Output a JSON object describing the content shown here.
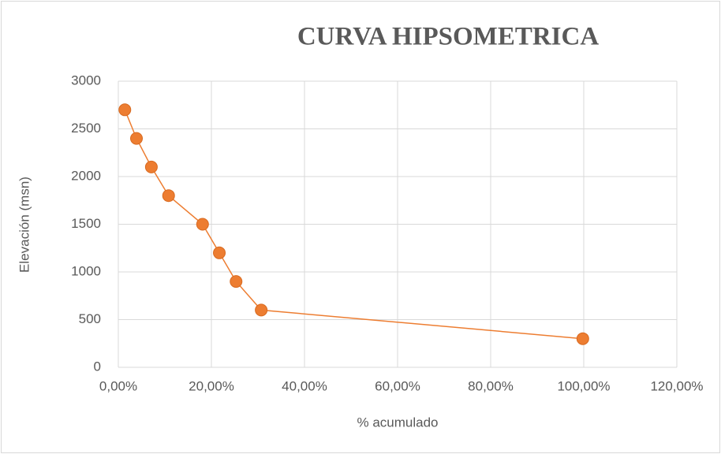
{
  "chart_data": {
    "type": "line",
    "title": "CURVA HIPSOMETRICA",
    "x_label": "% acumulado",
    "y_label": "Elevación (msn)",
    "x": [
      1.4,
      3.9,
      7.1,
      10.8,
      18.1,
      21.7,
      25.3,
      30.7,
      99.8
    ],
    "values": [
      2700,
      2400,
      2100,
      1800,
      1500,
      1200,
      900,
      600,
      300
    ],
    "color": "#ed7d31",
    "markers": true,
    "xlim": [
      0,
      120
    ],
    "xticks": [
      {
        "value": 0,
        "label": "0,00%"
      },
      {
        "value": 20,
        "label": "20,00%"
      },
      {
        "value": 40,
        "label": "40,00%"
      },
      {
        "value": 60,
        "label": "60,00%"
      },
      {
        "value": 80,
        "label": "80,00%"
      },
      {
        "value": 100,
        "label": "100,00%"
      },
      {
        "value": 120,
        "label": "120,00%"
      }
    ],
    "ylim": [
      0,
      3000
    ],
    "yticks": [
      0,
      500,
      1000,
      1500,
      2000,
      2500,
      3000
    ],
    "grid": true
  }
}
